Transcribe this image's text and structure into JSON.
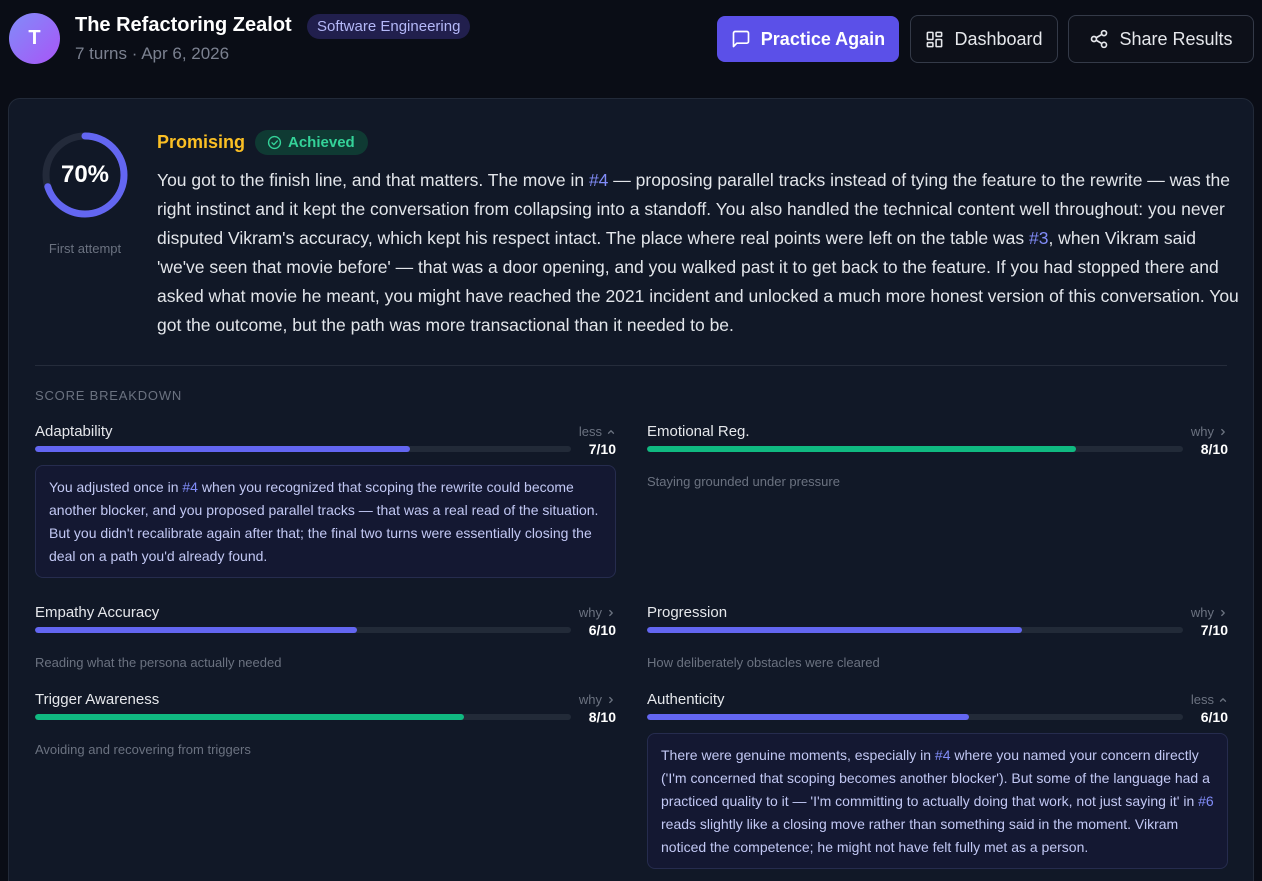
{
  "header": {
    "avatar_initial": "T",
    "title": "The Refactoring Zealot",
    "category": "Software Engineering",
    "turns": "7 turns",
    "separator": "·",
    "date": "Apr 6, 2026",
    "buttons": {
      "practice": "Practice Again",
      "dashboard": "Dashboard",
      "share": "Share Results"
    },
    "icons": {
      "practice": "chat-bubble-icon",
      "dashboard": "grid-icon",
      "share": "share-icon"
    }
  },
  "result": {
    "score_percent": "70%",
    "score_fraction": 0.7,
    "attempt": "First attempt",
    "verdict": "Promising",
    "status": "Achieved",
    "summary": {
      "p1": "You got to the finish line, and that matters. The move in ",
      "ref1": "#4",
      "p2": " — proposing parallel tracks instead of tying the feature to the rewrite — was the right instinct and it kept the conversation from collapsing into a standoff. You also handled the technical content well throughout: you never disputed Vikram's accuracy, which kept his respect intact. The place where real points were left on the table was ",
      "ref2": "#3",
      "p3": ", when Vikram said 'we've seen that movie before' — that was a door opening, and you walked past it to get back to the feature. If you had stopped there and asked what movie he meant, you might have reached the 2021 incident and unlocked a much more honest version of this conversation. You got the outcome, but the path was more transactional than it needed to be."
    }
  },
  "breakdown": {
    "title": "SCORE BREAKDOWN",
    "metrics": [
      {
        "name": "Adaptability",
        "toggle": "less",
        "score": "7/10",
        "value": 7,
        "color": "#6366f1",
        "detail": {
          "p1": "You adjusted once in ",
          "ref1": "#4",
          "p2": " when you recognized that scoping the rewrite could become another blocker, and you proposed parallel tracks — that was a real read of the situation. But you didn't recalibrate again after that; the final two turns were essentially closing the deal on a path you'd already found."
        }
      },
      {
        "name": "Emotional Reg.",
        "toggle": "why",
        "score": "8/10",
        "value": 8,
        "color": "#10b981",
        "caption": "Staying grounded under pressure"
      },
      {
        "name": "Empathy Accuracy",
        "toggle": "why",
        "score": "6/10",
        "value": 6,
        "color": "#6366f1",
        "caption": "Reading what the persona actually needed"
      },
      {
        "name": "Progression",
        "toggle": "why",
        "score": "7/10",
        "value": 7,
        "color": "#6366f1",
        "caption": "How deliberately obstacles were cleared"
      },
      {
        "name": "Trigger Awareness",
        "toggle": "why",
        "score": "8/10",
        "value": 8,
        "color": "#10b981",
        "caption": "Avoiding and recovering from triggers"
      },
      {
        "name": "Authenticity",
        "toggle": "less",
        "score": "6/10",
        "value": 6,
        "color": "#6366f1",
        "detail": {
          "p1": "There were genuine moments, especially in ",
          "ref1": "#4",
          "p2": " where you named your concern directly ('I'm concerned that scoping becomes another blocker'). But some of the language had a practiced quality to it — 'I'm committing to actually doing that work, not just saying it' in ",
          "ref2": "#6",
          "p3": " reads slightly like a closing move rather than something said in the moment. Vikram noticed the competence; he might not have felt fully met as a person."
        }
      }
    ]
  }
}
